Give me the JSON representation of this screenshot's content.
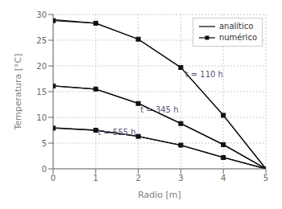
{
  "chart_data": {
    "type": "line",
    "xlabel": "Radio [m]",
    "ylabel": "Temperatura [°C]",
    "x": [
      0,
      1,
      2,
      3,
      4,
      5
    ],
    "xlim": [
      0,
      5
    ],
    "ylim": [
      0,
      30
    ],
    "xticks": [
      0,
      1,
      2,
      3,
      4,
      5
    ],
    "yticks": [
      0,
      5,
      10,
      15,
      20,
      25,
      30
    ],
    "grid": true,
    "legend": "upper right",
    "series": [
      {
        "name": "analítico",
        "color": "#111111",
        "marker": "none",
        "line_style": "solid",
        "values": [
          29.0,
          28.3,
          25.2,
          19.7,
          10.4,
          0.0
        ]
      },
      {
        "name": "numérico",
        "color": "#111111",
        "marker": "square",
        "line_style": "solid",
        "values": [
          28.8,
          28.3,
          25.2,
          19.7,
          10.4,
          0.0
        ]
      },
      {
        "name": "analítico",
        "color": "#111111",
        "marker": "none",
        "line_style": "solid",
        "values": [
          16.1,
          15.5,
          12.7,
          8.8,
          4.7,
          0.0
        ]
      },
      {
        "name": "numérico",
        "color": "#111111",
        "marker": "square",
        "line_style": "solid",
        "values": [
          16.1,
          15.5,
          12.7,
          8.8,
          4.7,
          0.0
        ]
      },
      {
        "name": "analítico",
        "color": "#111111",
        "marker": "none",
        "line_style": "solid",
        "values": [
          8.0,
          7.5,
          6.3,
          4.6,
          2.2,
          0.0
        ]
      },
      {
        "name": "numérico",
        "color": "#111111",
        "marker": "square",
        "line_style": "solid",
        "values": [
          7.9,
          7.5,
          6.3,
          4.6,
          2.2,
          0.0
        ]
      }
    ],
    "annotations": [
      {
        "text": "t = 110 h",
        "x": 3.1,
        "y": 17.8
      },
      {
        "text": "t = 345 h",
        "x": 2.05,
        "y": 11.0
      },
      {
        "text": "t = 555 h",
        "x": 1.05,
        "y": 6.5
      }
    ]
  }
}
